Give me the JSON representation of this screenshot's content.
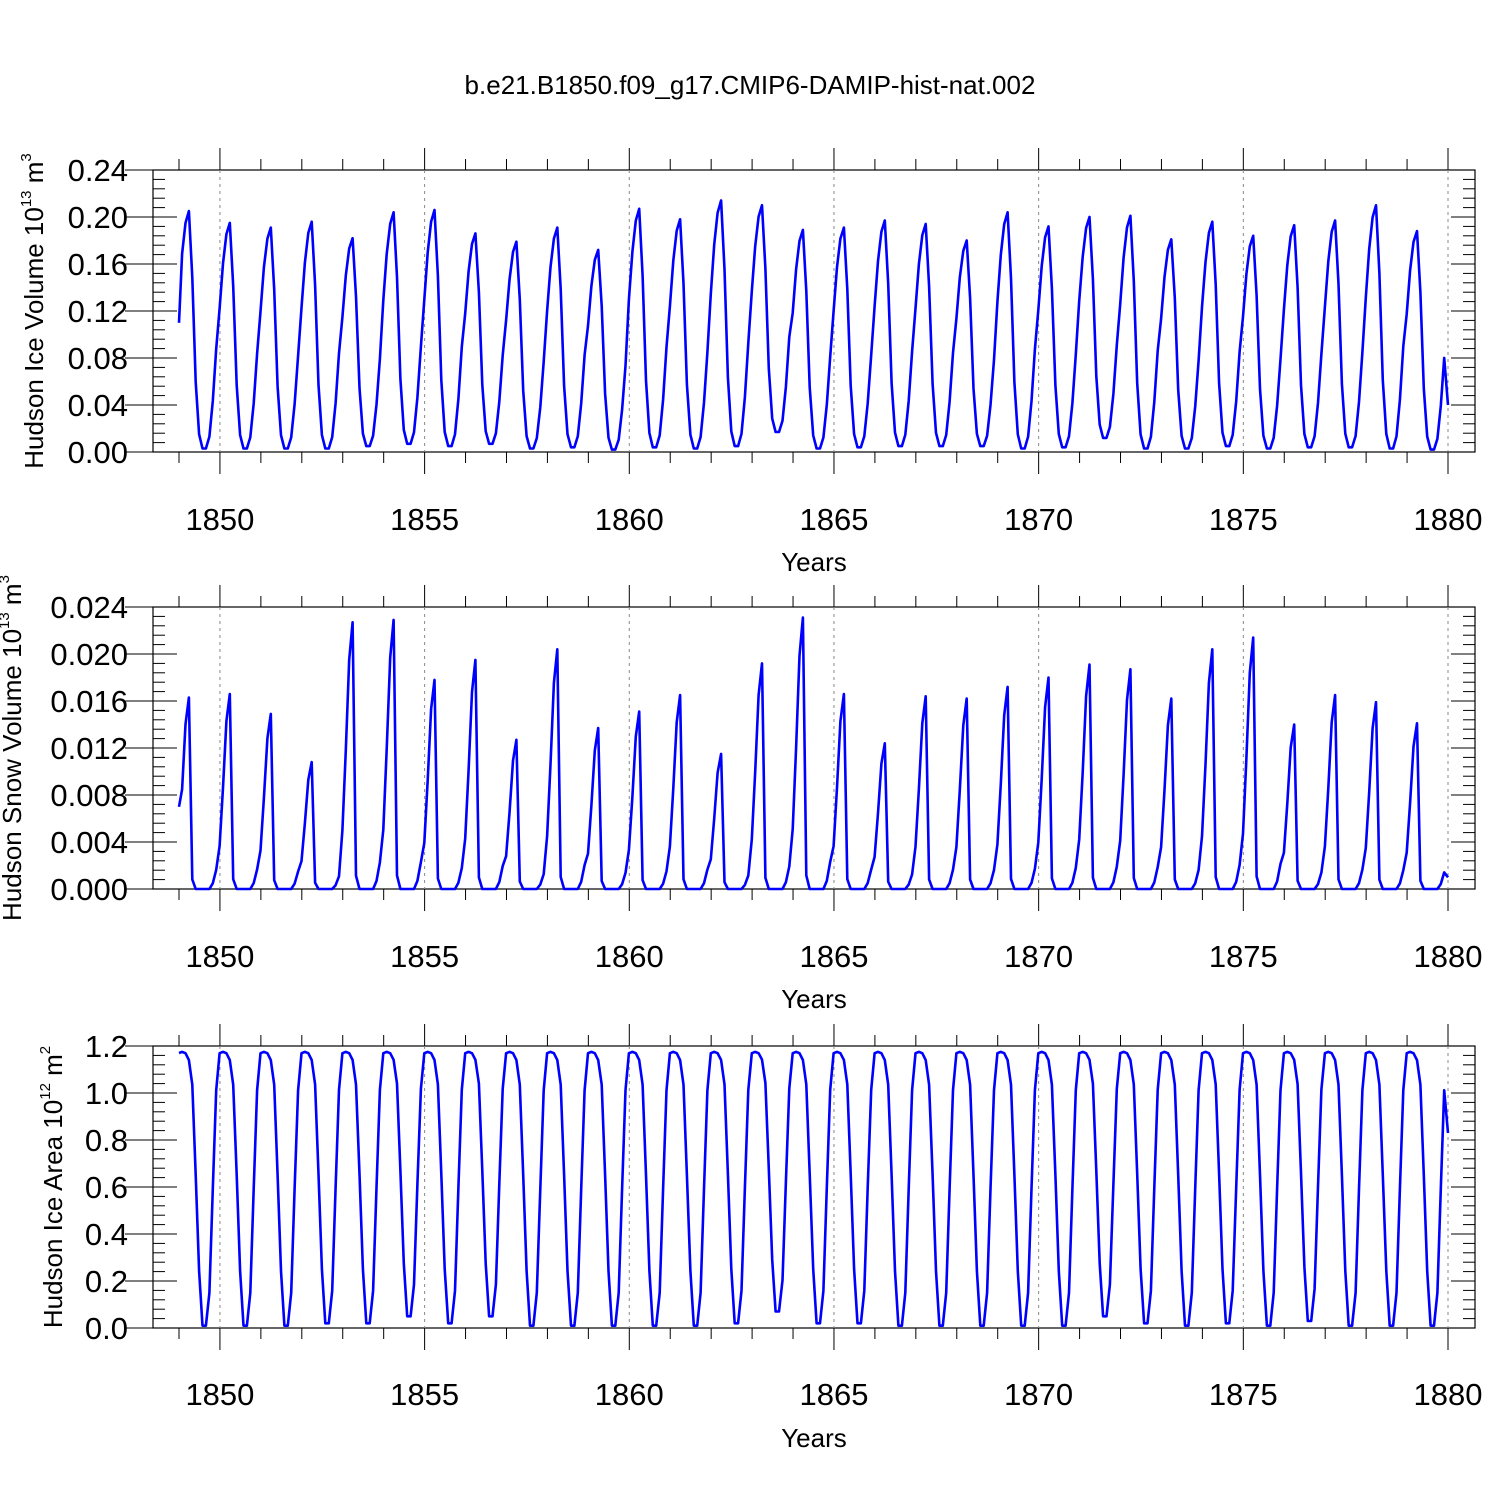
{
  "title": "b.e21.B1850.f09_g17.CMIP6-DAMIP-hist-nat.002",
  "chart_data": [
    {
      "type": "line",
      "ylabel": "Hudson Ice Volume 10",
      "ylabel_exp": "13",
      "ylabel_unit": " m",
      "ylabel_unit_exp": "3",
      "xlabel": "Years",
      "xlim": [
        1849,
        1880
      ],
      "ylim": [
        0.0,
        0.24
      ],
      "yticks": [
        "0.00",
        "0.04",
        "0.08",
        "0.12",
        "0.16",
        "0.20",
        "0.24"
      ],
      "xticks": [
        "1850",
        "1855",
        "1860",
        "1865",
        "1870",
        "1875",
        "1880"
      ],
      "line_color": "#0000ff",
      "grid": "dashed vertical lines at 5-year ticks",
      "series": [
        {
          "start_year": 1849,
          "peaks": [
            0.205,
            0.195,
            0.191,
            0.196,
            0.182,
            0.204,
            0.206,
            0.186,
            0.179,
            0.191,
            0.172,
            0.207,
            0.198,
            0.214,
            0.21,
            0.189,
            0.191,
            0.197,
            0.194,
            0.18,
            0.204,
            0.192,
            0.2,
            0.201,
            0.181,
            0.196,
            0.184,
            0.193,
            0.197,
            0.21,
            0.188
          ],
          "troughs": [
            0.003,
            0.003,
            0.003,
            0.003,
            0.005,
            0.007,
            0.005,
            0.007,
            0.003,
            0.004,
            0.002,
            0.004,
            0.003,
            0.005,
            0.017,
            0.003,
            0.004,
            0.005,
            0.005,
            0.005,
            0.003,
            0.004,
            0.012,
            0.003,
            0.003,
            0.005,
            0.003,
            0.004,
            0.004,
            0.003,
            0.002
          ],
          "start_value": 0.11,
          "end_value": 0.04
        }
      ]
    },
    {
      "type": "line",
      "ylabel": "Hudson Snow Volume 10",
      "ylabel_exp": "13",
      "ylabel_unit": " m",
      "ylabel_unit_exp": "3",
      "xlabel": "Years",
      "xlim": [
        1849,
        1880
      ],
      "ylim": [
        0.0,
        0.024
      ],
      "yticks": [
        "0.000",
        "0.004",
        "0.008",
        "0.012",
        "0.016",
        "0.020",
        "0.024"
      ],
      "xticks": [
        "1850",
        "1855",
        "1860",
        "1865",
        "1870",
        "1875",
        "1880"
      ],
      "line_color": "#0000ff",
      "grid": "dashed vertical lines at 5-year ticks",
      "series": [
        {
          "start_year": 1849,
          "peaks": [
            0.0163,
            0.0166,
            0.0149,
            0.0108,
            0.0227,
            0.0229,
            0.0178,
            0.0195,
            0.0127,
            0.0204,
            0.0137,
            0.0151,
            0.0165,
            0.0115,
            0.0192,
            0.0231,
            0.0166,
            0.0124,
            0.0164,
            0.0162,
            0.0172,
            0.018,
            0.0191,
            0.0187,
            0.0162,
            0.0204,
            0.0214,
            0.014,
            0.0165,
            0.0159,
            0.0141
          ],
          "troughs": [
            0.0,
            0.0,
            0.0,
            0.0,
            0.0,
            0.0,
            0.0,
            0.0,
            0.0,
            0.0,
            0.0,
            0.0,
            0.0,
            0.0,
            0.0,
            0.0,
            0.0,
            0.0,
            0.0,
            0.0,
            0.0,
            0.0,
            0.0,
            0.0,
            0.0,
            0.0,
            0.0,
            0.0,
            0.0,
            0.0,
            0.0
          ],
          "start_value": 0.007,
          "end_value": 0.001
        }
      ]
    },
    {
      "type": "line",
      "ylabel": "Hudson Ice Area 10",
      "ylabel_exp": "12",
      "ylabel_unit": " m",
      "ylabel_unit_exp": "2",
      "xlabel": "Years",
      "xlim": [
        1849,
        1880
      ],
      "ylim": [
        0.0,
        1.2
      ],
      "yticks": [
        "0.0",
        "0.2",
        "0.4",
        "0.6",
        "0.8",
        "1.0",
        "1.2"
      ],
      "xticks": [
        "1850",
        "1855",
        "1860",
        "1865",
        "1870",
        "1875",
        "1880"
      ],
      "line_color": "#0000ff",
      "grid": "dashed vertical lines at 5-year ticks",
      "series": [
        {
          "start_year": 1849,
          "peaks": [
            1.175,
            1.175,
            1.175,
            1.175,
            1.175,
            1.175,
            1.175,
            1.175,
            1.175,
            1.175,
            1.175,
            1.175,
            1.175,
            1.175,
            1.175,
            1.175,
            1.175,
            1.175,
            1.175,
            1.175,
            1.175,
            1.175,
            1.175,
            1.175,
            1.175,
            1.175,
            1.175,
            1.175,
            1.175,
            1.175,
            1.175
          ],
          "troughs": [
            0.01,
            0.01,
            0.01,
            0.02,
            0.02,
            0.05,
            0.02,
            0.05,
            0.01,
            0.01,
            0.01,
            0.01,
            0.01,
            0.02,
            0.07,
            0.02,
            0.02,
            0.01,
            0.01,
            0.01,
            0.01,
            0.01,
            0.05,
            0.02,
            0.01,
            0.02,
            0.01,
            0.03,
            0.01,
            0.01,
            0.01
          ],
          "start_value": 1.17,
          "end_value": 0.83
        }
      ]
    }
  ]
}
